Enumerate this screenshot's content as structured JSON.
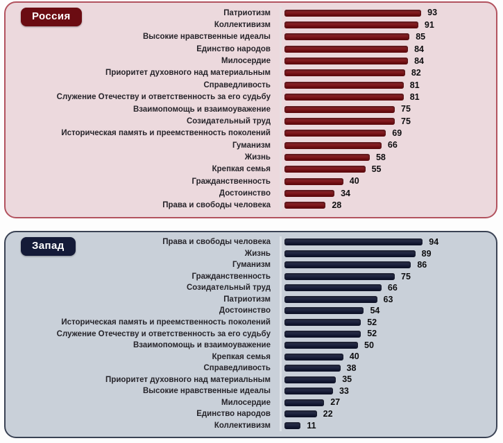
{
  "panels": [
    {
      "badge": "Россия",
      "colors": {
        "panel_bg": "#ecd9dd",
        "panel_border": "#b2525e",
        "badge_bg": "#6b0c12",
        "bar": "#7f0e13",
        "axis": "#e6dfe1"
      }
    },
    {
      "badge": "Запад",
      "colors": {
        "panel_bg": "#c9d0d9",
        "panel_border": "#3a4254",
        "badge_bg": "#141a38",
        "bar": "#141a38",
        "axis": "#dde2e8"
      }
    }
  ],
  "chart_data": [
    {
      "type": "bar",
      "orientation": "horizontal",
      "title": "Россия",
      "xlim": [
        0,
        100
      ],
      "value_labels": true,
      "legend": "none",
      "grid": false,
      "categories": [
        "Патриотизм",
        "Коллективизм",
        "Высокие нравственные идеалы",
        "Единство народов",
        "Милосердие",
        "Приоритет духовного над материальным",
        "Справедливость",
        "Служение Отечеству и ответственность за его судьбу",
        "Взаимопомощь и взаимоуважение",
        "Созидательный труд",
        "Историческая память и преемственность поколений",
        "Гуманизм",
        "Жизнь",
        "Крепкая семья",
        "Гражданственность",
        "Достоинство",
        "Права и свободы человека"
      ],
      "values": [
        93,
        91,
        85,
        84,
        84,
        82,
        81,
        81,
        75,
        75,
        69,
        66,
        58,
        55,
        40,
        34,
        28
      ]
    },
    {
      "type": "bar",
      "orientation": "horizontal",
      "title": "Запад",
      "xlim": [
        0,
        100
      ],
      "value_labels": true,
      "legend": "none",
      "grid": false,
      "categories": [
        "Права и свободы человека",
        "Жизнь",
        "Гуманизм",
        "Гражданственность",
        "Созидательный труд",
        "Патриотизм",
        "Достоинство",
        "Историческая память и преемственность поколений",
        "Служение Отечеству и ответственность за его судьбу",
        "Взаимопомощь и взаимоуважение",
        "Крепкая семья",
        "Справедливость",
        "Приоритет духовного над материальным",
        "Высокие нравственные идеалы",
        "Милосердие",
        "Единство народов",
        "Коллективизм"
      ],
      "values": [
        94,
        89,
        86,
        75,
        66,
        63,
        54,
        52,
        52,
        50,
        40,
        38,
        35,
        33,
        27,
        22,
        11
      ]
    }
  ]
}
